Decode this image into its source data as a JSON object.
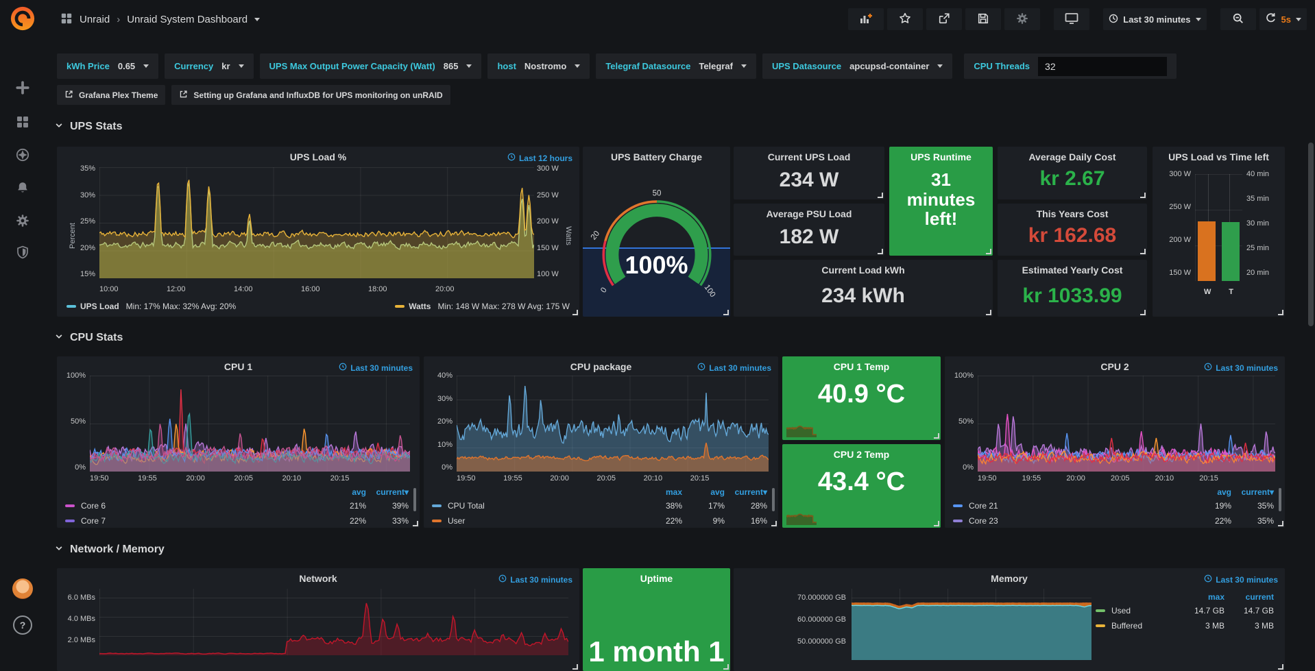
{
  "theme": {
    "accent_orange": "#eb7b18",
    "blue": "#339fe0",
    "cyan": "#3dc9de",
    "green_panel": "#299c46",
    "green_arc": "#2f9e4c",
    "green_text": "#2bb24a",
    "red_text": "#d44a3a",
    "orange_bar": "#d9721f",
    "red_arc": "#e02f44",
    "orange_arc": "#e0752d"
  },
  "icons": [
    "grafana-logo",
    "plus-icon",
    "dashboards-icon",
    "explore-compass-icon",
    "alerting-bell-icon",
    "configuration-gear-icon",
    "server-admin-shield-icon",
    "avatar",
    "help-icon",
    "add-panel-icon",
    "star-icon",
    "share-icon",
    "save-icon",
    "settings-gear-icon",
    "tv-monitor-icon",
    "clock-icon",
    "zoom-out-icon",
    "refresh-icon",
    "external-link-icon",
    "chevron-down-icon",
    "caret-down-icon"
  ],
  "topnav": {
    "breadcrumb": {
      "app": "Unraid",
      "sep": "›",
      "page": "Unraid System Dashboard"
    },
    "time_picker": "Last 30 minutes",
    "refresh_interval": "5s"
  },
  "sidebar": {
    "help": "?"
  },
  "submenu": {
    "variables": [
      {
        "label": "kWh Price",
        "value": "0.65"
      },
      {
        "label": "Currency",
        "value": "kr"
      },
      {
        "label": "UPS Max Output Power Capacity (Watt)",
        "value": "865"
      },
      {
        "label": "host",
        "value": "Nostromo"
      },
      {
        "label": "Telegraf Datasource",
        "value": "Telegraf"
      },
      {
        "label": "UPS Datasource",
        "value": "apcupsd-container"
      }
    ],
    "cpu_threads": {
      "label": "CPU Threads",
      "value": "32"
    },
    "links": [
      "Grafana Plex Theme",
      "Setting up Grafana and InfluxDB for UPS monitoring on unRAID"
    ]
  },
  "sections": {
    "ups": "UPS Stats",
    "cpu": "CPU Stats",
    "netmem": "Network / Memory"
  },
  "panels": {
    "ups_load": {
      "title": "UPS Load %",
      "timerange": "Last 12 hours",
      "y_left_label": "Percent",
      "y_right_label": "Watts",
      "y_left": [
        "35%",
        "30%",
        "25%",
        "20%",
        "15%"
      ],
      "y_right": [
        "300 W",
        "250 W",
        "200 W",
        "150 W",
        "100 W"
      ],
      "x": [
        "10:00",
        "12:00",
        "14:00",
        "16:00",
        "18:00",
        "20:00"
      ],
      "legend": [
        {
          "name": "UPS Load",
          "color": "#5bc0d9",
          "stats": "Min: 17% Max: 32% Avg: 20%"
        },
        {
          "name": "Watts",
          "color": "#e8b339",
          "stats": "Min: 148 W Max: 278 W Avg: 175 W"
        }
      ]
    },
    "battery": {
      "title": "UPS Battery Charge",
      "value": "100%",
      "ticks": [
        "0",
        "20",
        "50",
        "100"
      ]
    },
    "current_ups_load": {
      "title": "Current UPS Load",
      "value": "234 W"
    },
    "avg_psu_load": {
      "title": "Average PSU Load",
      "value": "182 W"
    },
    "ups_runtime": {
      "title": "UPS Runtime",
      "value": "31 minutes left!"
    },
    "current_load_kwh": {
      "title": "Current Load kWh",
      "value": "234 kWh"
    },
    "avg_daily_cost": {
      "title": "Average Daily Cost",
      "value": "kr  2.67"
    },
    "years_cost": {
      "title": "This Years Cost",
      "value": "kr  162.68"
    },
    "est_yearly_cost": {
      "title": "Estimated Yearly Cost",
      "value": "kr  1033.99"
    },
    "ups_bar": {
      "title": "UPS Load vs Time left",
      "y_left": [
        "300 W",
        "250 W",
        "200 W",
        "150 W"
      ],
      "y_right": [
        "40 min",
        "35 min",
        "30 min",
        "25 min",
        "20 min"
      ],
      "bars": [
        {
          "label": "W",
          "value": 234,
          "min": 150,
          "max": 300,
          "color": "#d9721f"
        },
        {
          "label": "T",
          "value": 31,
          "min": 20,
          "max": 40,
          "color": "#2f9e4c"
        }
      ]
    },
    "cpu1": {
      "title": "CPU 1",
      "timerange": "Last 30 minutes",
      "y": [
        "100%",
        "50%",
        "0%"
      ],
      "x": [
        "19:50",
        "19:55",
        "20:00",
        "20:05",
        "20:10",
        "20:15"
      ],
      "legend": {
        "headers": [
          "avg",
          "current"
        ],
        "sorted": "current",
        "rows": [
          {
            "name": "Core 6",
            "color": "#cb52cb",
            "values": [
              "21%",
              "39%"
            ]
          },
          {
            "name": "Core 7",
            "color": "#8064d8",
            "values": [
              "22%",
              "33%"
            ]
          }
        ]
      }
    },
    "cpu_package": {
      "title": "CPU package",
      "timerange": "Last 30 minutes",
      "y": [
        "40%",
        "30%",
        "20%",
        "10%",
        "0%"
      ],
      "x": [
        "19:50",
        "19:55",
        "20:00",
        "20:05",
        "20:10",
        "20:15"
      ],
      "legend": {
        "headers": [
          "max",
          "avg",
          "current"
        ],
        "sorted": "current",
        "rows": [
          {
            "name": "CPU Total",
            "color": "#64a8d8",
            "values": [
              "38%",
              "17%",
              "28%"
            ]
          },
          {
            "name": "User",
            "color": "#e0752d",
            "values": [
              "22%",
              "9%",
              "16%"
            ]
          }
        ]
      }
    },
    "cpu1_temp": {
      "title": "CPU 1 Temp",
      "value": "40.9 °C"
    },
    "cpu2_temp": {
      "title": "CPU 2 Temp",
      "value": "43.4 °C"
    },
    "cpu2": {
      "title": "CPU 2",
      "timerange": "Last 30 minutes",
      "y": [
        "100%",
        "50%",
        "0%"
      ],
      "x": [
        "19:50",
        "19:55",
        "20:00",
        "20:05",
        "20:10",
        "20:15"
      ],
      "legend": {
        "headers": [
          "avg",
          "current"
        ],
        "sorted": "current",
        "rows": [
          {
            "name": "Core 21",
            "color": "#5794f2",
            "values": [
              "19%",
              "35%"
            ]
          },
          {
            "name": "Core 23",
            "color": "#8f7fd4",
            "values": [
              "22%",
              "35%"
            ]
          }
        ]
      }
    },
    "network": {
      "title": "Network",
      "timerange": "Last 30 minutes",
      "y": [
        "6.0 MBs",
        "4.0 MBs",
        "2.0 MBs"
      ]
    },
    "uptime": {
      "title": "Uptime",
      "value": "1 month 1"
    },
    "memory": {
      "title": "Memory",
      "timerange": "Last 30 minutes",
      "y": [
        "70.000000 GB",
        "60.000000 GB",
        "50.000000 GB"
      ],
      "legend": {
        "headers": [
          "max",
          "current"
        ],
        "rows": [
          {
            "name": "Used",
            "color": "#73bf69",
            "values": [
              "14.7 GB",
              "14.7 GB"
            ]
          },
          {
            "name": "Buffered",
            "color": "#e8b339",
            "values": [
              "3 MB",
              "3 MB"
            ]
          }
        ]
      }
    }
  },
  "charts": {
    "ups_load": {
      "series": [
        {
          "color": "#a9d79b",
          "fill": "rgba(140,160,80,0.55)",
          "base": 0.3,
          "amp": 0.055,
          "seed": 11,
          "n": 330,
          "spikes": [
            [
              0.135,
              0.85
            ],
            [
              0.205,
              0.87
            ],
            [
              0.252,
              0.8
            ],
            [
              0.345,
              0.52
            ],
            [
              0.972,
              0.72
            ],
            [
              0.988,
              0.66
            ]
          ]
        },
        {
          "color": "#e8b339",
          "fill": "rgba(210,160,50,0.30)",
          "base": 0.4,
          "amp": 0.05,
          "seed": 5,
          "n": 330,
          "spikes": [
            [
              0.135,
              0.88
            ],
            [
              0.205,
              0.9
            ],
            [
              0.252,
              0.83
            ],
            [
              0.345,
              0.58
            ],
            [
              0.972,
              0.82
            ],
            [
              0.988,
              0.75
            ]
          ]
        }
      ]
    },
    "cpu1": {
      "series": [
        {
          "color": "#b877d9",
          "fill": "rgba(184,119,217,0.30)",
          "base": 0.2,
          "amp": 0.13,
          "seed": 3,
          "spikes": [
            [
              0.3,
              0.5
            ],
            [
              0.55,
              0.35
            ],
            [
              0.83,
              0.42
            ]
          ]
        },
        {
          "color": "#e02f44",
          "fill": "rgba(224,47,68,0.22)",
          "base": 0.17,
          "amp": 0.11,
          "seed": 7,
          "spikes": [
            [
              0.285,
              0.86,
              0.004
            ],
            [
              0.54,
              0.35
            ],
            [
              0.9,
              0.3
            ]
          ]
        },
        {
          "color": "#ff9830",
          "fill": "rgba(255,152,48,0.20)",
          "base": 0.16,
          "amp": 0.1,
          "seed": 13,
          "spikes": [
            [
              0.27,
              0.5
            ],
            [
              0.67,
              0.45
            ]
          ]
        },
        {
          "color": "#5794f2",
          "fill": "rgba(87,148,242,0.20)",
          "base": 0.18,
          "amp": 0.11,
          "seed": 19,
          "spikes": [
            [
              0.25,
              0.55
            ],
            [
              0.74,
              0.4
            ]
          ]
        },
        {
          "color": "#37a2a2",
          "fill": "rgba(55,162,162,0.20)",
          "base": 0.15,
          "amp": 0.09,
          "seed": 23,
          "spikes": [
            [
              0.31,
              0.62
            ],
            [
              0.19,
              0.45
            ]
          ]
        },
        {
          "color": "#c4528f",
          "fill": "rgba(196,82,143,0.25)",
          "base": 0.19,
          "amp": 0.12,
          "seed": 29,
          "spikes": [
            [
              0.22,
              0.5
            ],
            [
              0.47,
              0.4
            ],
            [
              0.97,
              0.38
            ]
          ]
        }
      ]
    },
    "cpu_package": {
      "series": [
        {
          "color": "#64a8d8",
          "fill": "rgba(100,168,216,0.35)",
          "base": 0.42,
          "amp": 0.17,
          "seed": 4,
          "spikes": [
            [
              0.17,
              0.8
            ],
            [
              0.22,
              0.9
            ],
            [
              0.27,
              0.75
            ],
            [
              0.52,
              0.6
            ],
            [
              0.8,
              0.82,
              0.004
            ],
            [
              0.84,
              0.55
            ]
          ]
        },
        {
          "color": "#e0752d",
          "fill": "rgba(224,117,45,0.45)",
          "base": 0.14,
          "amp": 0.04,
          "seed": 9,
          "spikes": [
            [
              0.8,
              0.3
            ]
          ]
        }
      ]
    },
    "cpu2": {
      "series": [
        {
          "color": "#b877d9",
          "fill": "rgba(184,119,217,0.35)",
          "base": 0.2,
          "amp": 0.13,
          "seed": 31,
          "spikes": [
            [
              0.07,
              0.5
            ],
            [
              0.12,
              0.58
            ],
            [
              0.75,
              0.5
            ],
            [
              0.97,
              0.42
            ]
          ]
        },
        {
          "color": "#e552c5",
          "fill": "rgba(229,82,197,0.25)",
          "base": 0.17,
          "amp": 0.11,
          "seed": 37,
          "spikes": [
            [
              0.1,
              0.6
            ],
            [
              0.55,
              0.42
            ]
          ]
        },
        {
          "color": "#5794f2",
          "fill": "rgba(87,148,242,0.20)",
          "base": 0.16,
          "amp": 0.1,
          "seed": 41,
          "spikes": [
            [
              0.3,
              0.4
            ],
            [
              0.85,
              0.38
            ]
          ]
        },
        {
          "color": "#ff9830",
          "fill": "rgba(255,152,48,0.18)",
          "base": 0.14,
          "amp": 0.09,
          "seed": 43,
          "spikes": [
            [
              0.6,
              0.35
            ]
          ]
        },
        {
          "color": "#e02f44",
          "fill": "rgba(224,47,68,0.18)",
          "base": 0.15,
          "amp": 0.09,
          "seed": 47,
          "spikes": [
            [
              0.45,
              0.35
            ],
            [
              0.9,
              0.3
            ]
          ]
        }
      ]
    },
    "temp1": {
      "series": [
        {
          "color": "#7a5c1c",
          "fill": "rgba(70,58,16,0.55)",
          "base": 0.3,
          "amp": 0.025,
          "seed": 8,
          "spikes": [
            [
              0.45,
              0.37,
              0.18
            ]
          ],
          "fade": [
            0.87,
            0.3
          ]
        }
      ]
    },
    "temp2": {
      "series": [
        {
          "color": "#7a5c1c",
          "fill": "rgba(70,58,16,0.55)",
          "base": 0.3,
          "amp": 0.025,
          "seed": 14,
          "spikes": [
            [
              0.45,
              0.36,
              0.18
            ]
          ],
          "fade": [
            0.88,
            0.3
          ]
        }
      ]
    },
    "network": {
      "series": [
        {
          "color": "#c4162a",
          "fill": "rgba(196,22,42,0.30)",
          "base": 0.22,
          "amp": 0.1,
          "seed": 21,
          "window": [
            0.4,
            0.12
          ],
          "spikes": [
            [
              0.435,
              0.3,
              0.01
            ],
            [
              0.57,
              0.79,
              0.006
            ],
            [
              0.605,
              0.55
            ],
            [
              0.635,
              0.47
            ],
            [
              0.7,
              0.33
            ],
            [
              0.755,
              0.6,
              0.005
            ],
            [
              0.8,
              0.38
            ],
            [
              0.86,
              0.32
            ],
            [
              0.9,
              0.34
            ],
            [
              0.95,
              0.33
            ],
            [
              0.985,
              0.4
            ]
          ]
        }
      ]
    },
    "memory": {
      "series": [
        {
          "color": "#c9641f",
          "fill": "rgba(217,114,31,0.92)",
          "base": 0.8,
          "amp": 0.004,
          "seed": 2,
          "dips": [
            [
              0.2,
              0.045,
              0.02
            ],
            [
              0.25,
              0.03,
              0.012
            ]
          ]
        },
        {
          "color": "#6fd8e8",
          "fill": "rgba(47,125,140,0.92)",
          "base": 0.765,
          "amp": 0.004,
          "seed": 2,
          "dips": [
            [
              0.2,
              0.045,
              0.02
            ],
            [
              0.25,
              0.03,
              0.012
            ],
            [
              0.97,
              0.02,
              0.01
            ]
          ]
        }
      ]
    }
  }
}
